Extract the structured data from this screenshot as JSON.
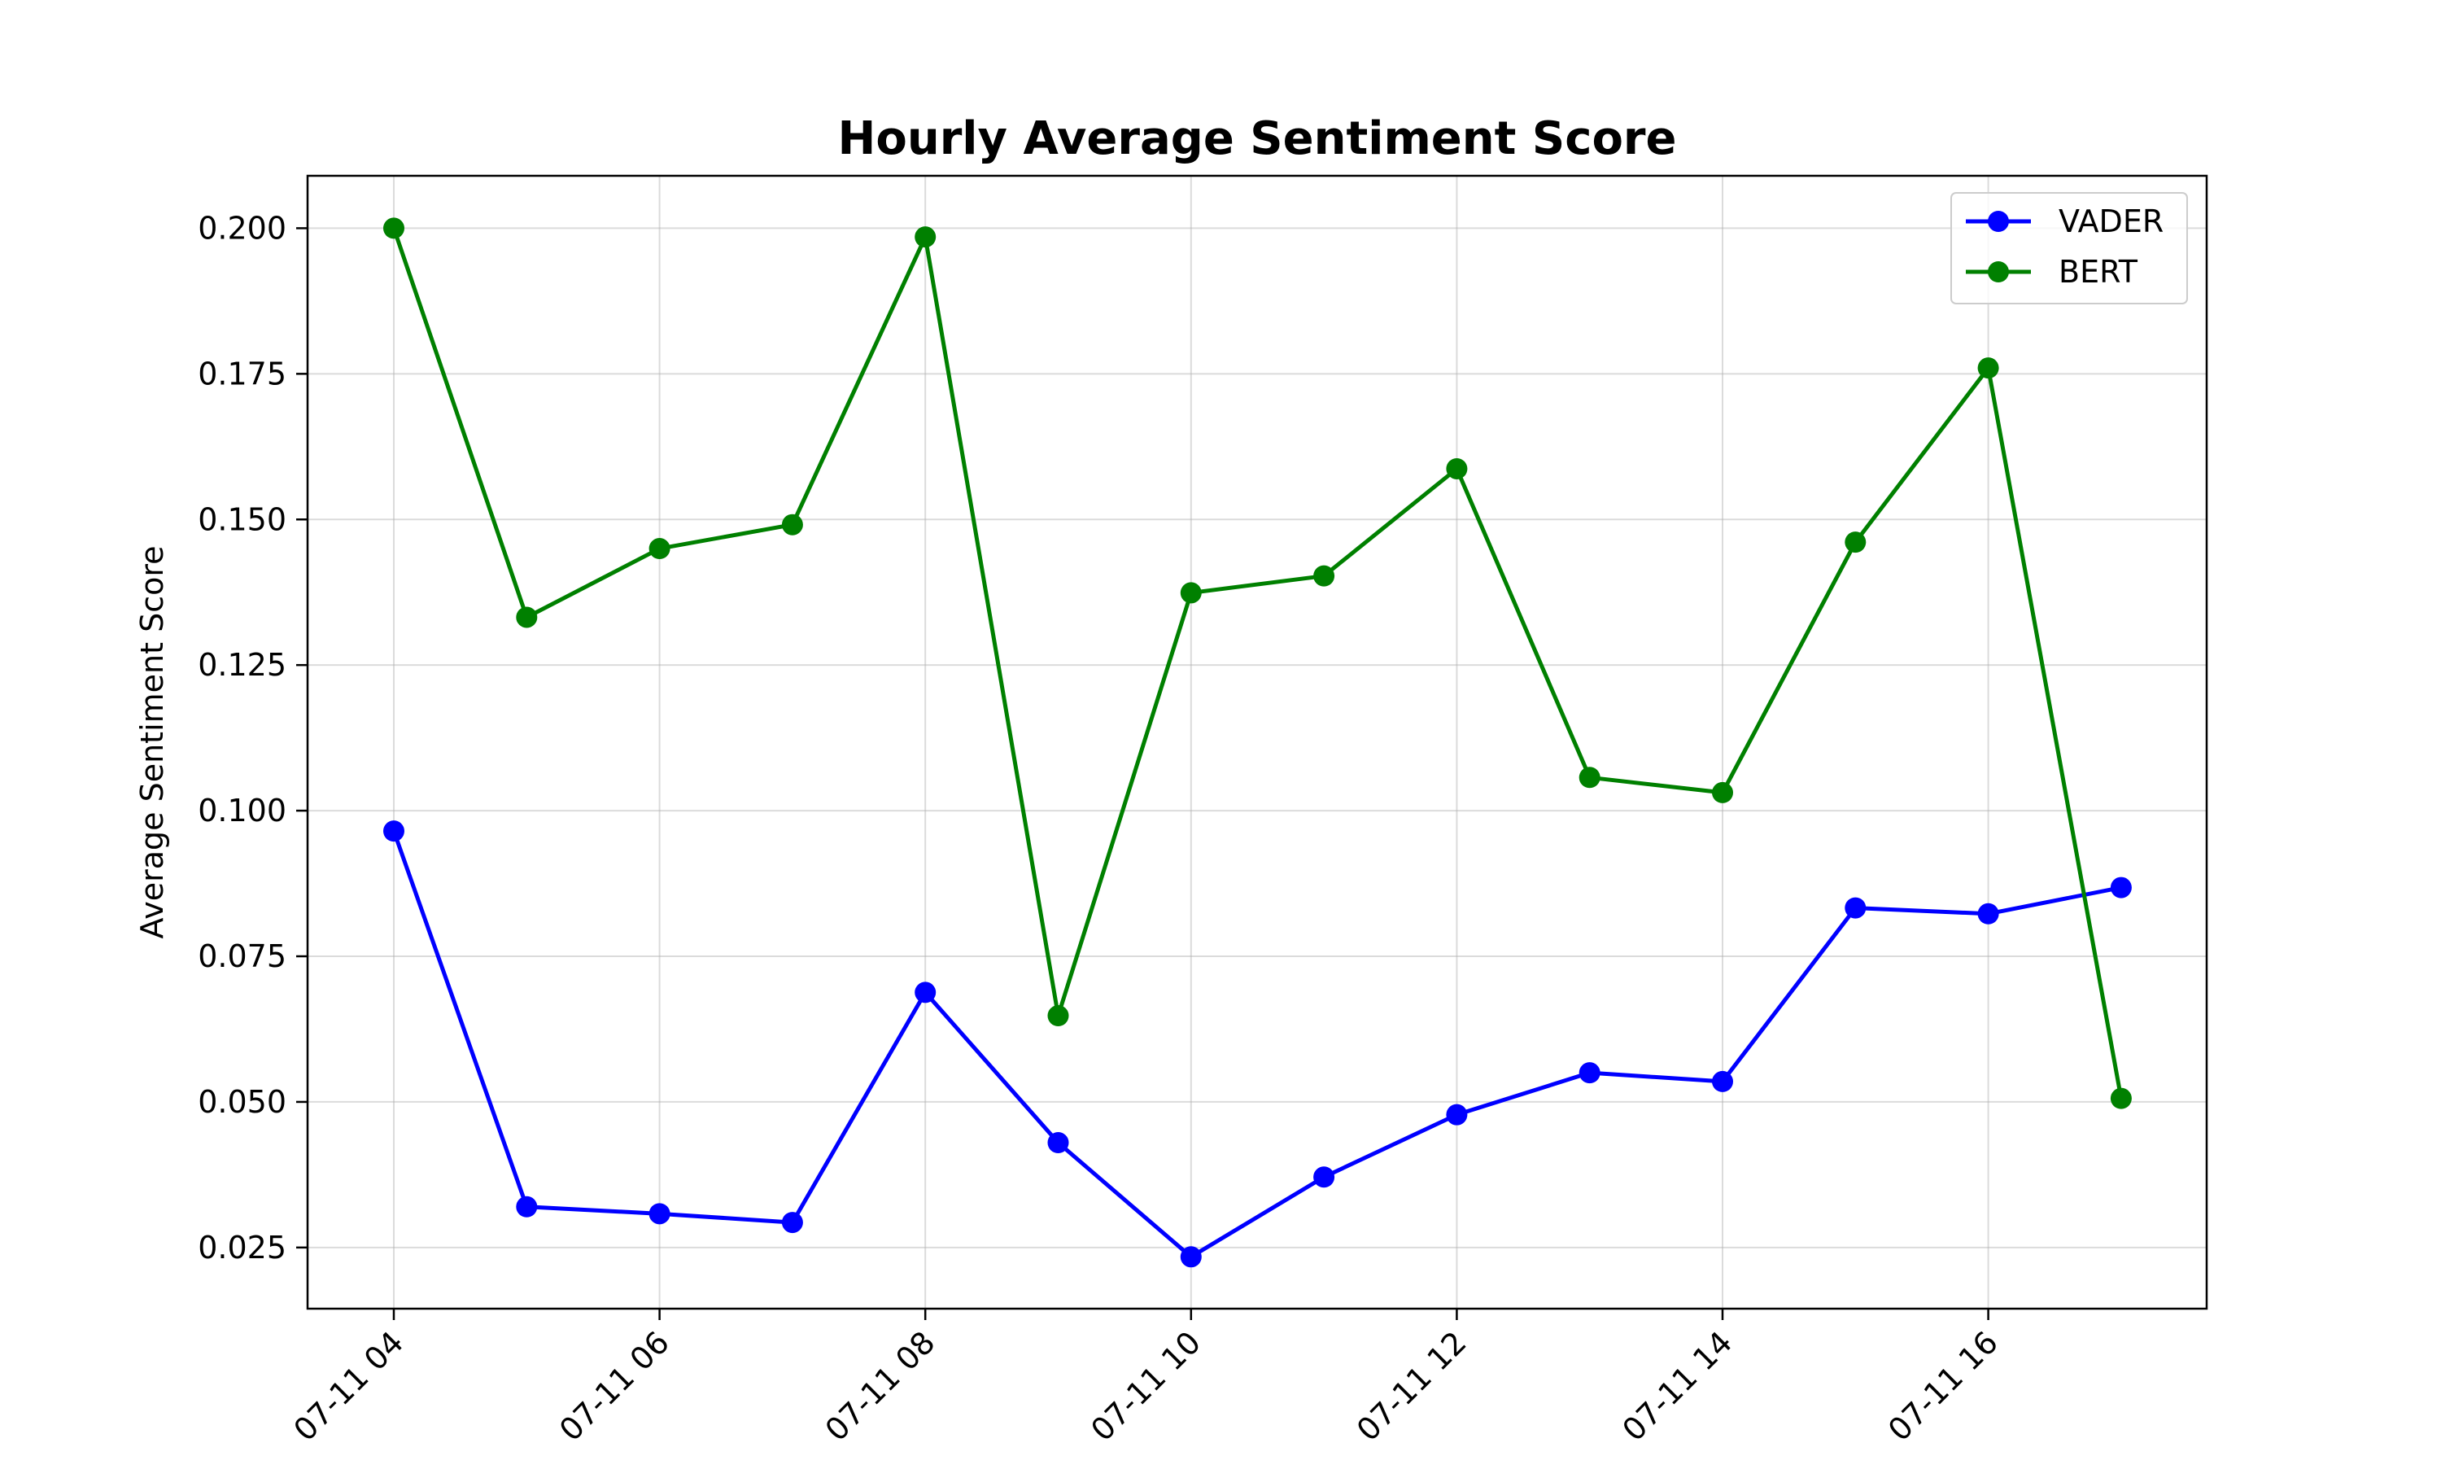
{
  "chart_data": {
    "type": "line",
    "title": "Hourly Average Sentiment Score",
    "xlabel": "",
    "ylabel": "Average Sentiment Score",
    "x": [
      "07-11 04",
      "07-11 05",
      "07-11 06",
      "07-11 07",
      "07-11 08",
      "07-11 09",
      "07-11 10",
      "07-11 11",
      "07-11 12",
      "07-11 13",
      "07-11 14",
      "07-11 15",
      "07-11 16",
      "07-11 17"
    ],
    "x_tick_labels": [
      "07-11 04",
      "07-11 06",
      "07-11 08",
      "07-11 10",
      "07-11 12",
      "07-11 14",
      "07-11 16"
    ],
    "y_ticks": [
      "0.025",
      "0.050",
      "0.075",
      "0.100",
      "0.125",
      "0.150",
      "0.175",
      "0.200"
    ],
    "ylim": [
      0.0145,
      0.209
    ],
    "grid": true,
    "legend_position": "top-right",
    "series": [
      {
        "name": "VADER",
        "color": "#0000ff",
        "values": [
          0.0965,
          0.032,
          0.0308,
          0.0293,
          0.0688,
          0.043,
          0.0234,
          0.0371,
          0.0478,
          0.055,
          0.0535,
          0.0833,
          0.0823,
          0.0868
        ]
      },
      {
        "name": "BERT",
        "color": "#008000",
        "values": [
          0.2,
          0.1332,
          0.145,
          0.1491,
          0.1985,
          0.0648,
          0.1374,
          0.1403,
          0.1587,
          0.1057,
          0.1031,
          0.1461,
          0.176,
          0.0506
        ]
      }
    ]
  }
}
